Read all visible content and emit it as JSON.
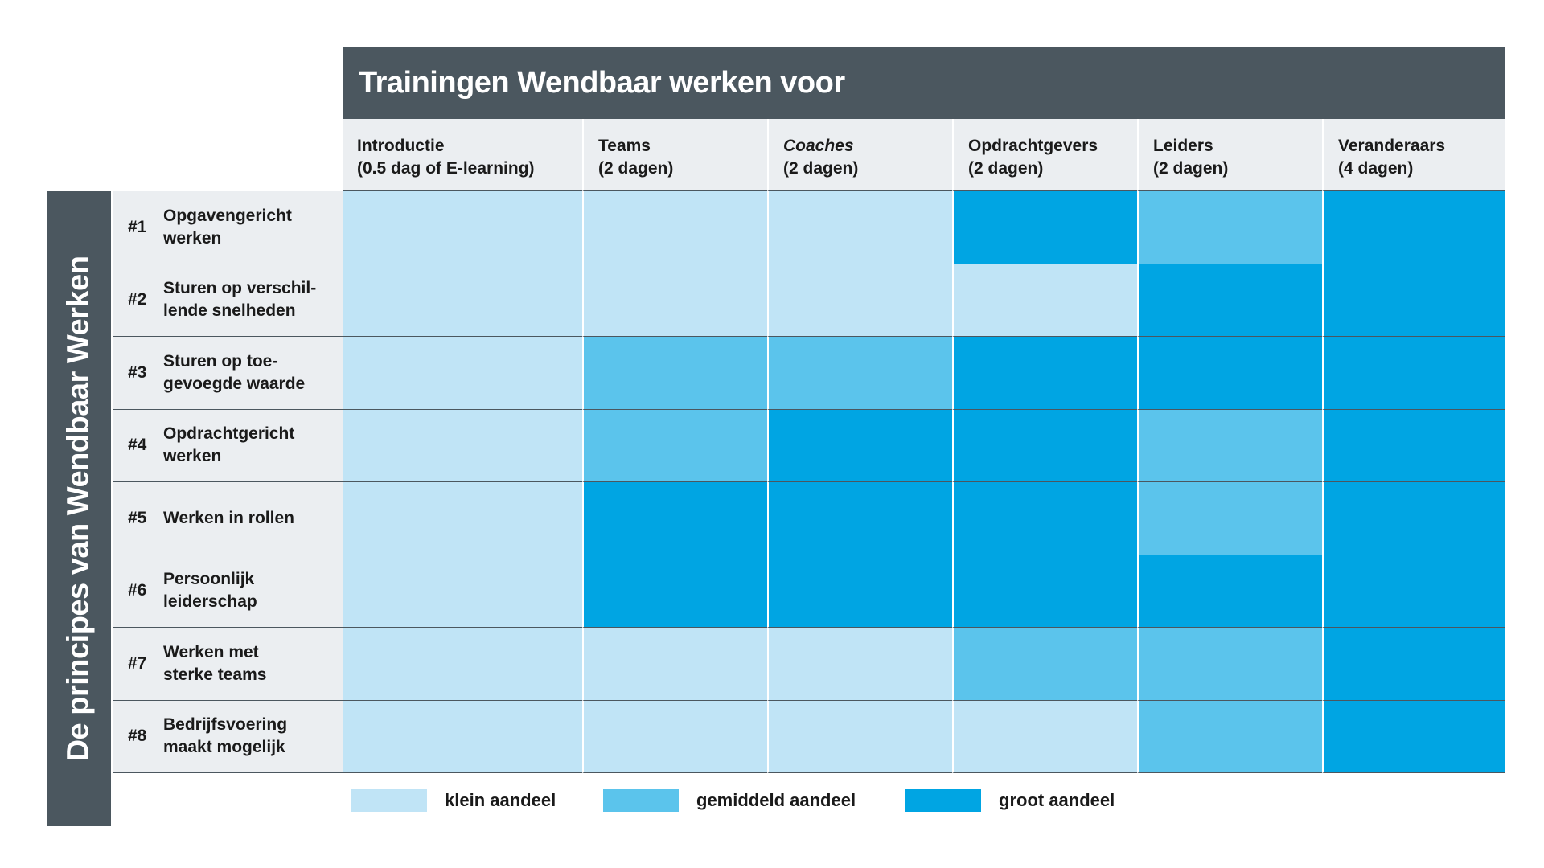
{
  "title": "Trainingen Wendbaar werken voor",
  "side_title": "De principes van Wendbaar Werken",
  "colors": {
    "header_bg": "#4b575f",
    "label_bg": "#ebeef1",
    "klein": "#c0e4f6",
    "gemiddeld": "#5bc4ec",
    "groot": "#00a5e3"
  },
  "chart_data": {
    "type": "heatmap",
    "title": "Trainingen Wendbaar werken voor",
    "columns": [
      {
        "line1": "Introductie",
        "line2": "(0.5 dag of E-learning)",
        "italic": false
      },
      {
        "line1": "Teams",
        "line2": "(2 dagen)",
        "italic": false
      },
      {
        "line1": "Coaches",
        "line2": "(2 dagen)",
        "italic": true
      },
      {
        "line1": "Opdrachtgevers",
        "line2": "(2 dagen)",
        "italic": false
      },
      {
        "line1": "Leiders",
        "line2": "(2 dagen)",
        "italic": false
      },
      {
        "line1": "Veranderaars",
        "line2": "(4 dagen)",
        "italic": false
      }
    ],
    "rows": [
      {
        "num": "#1",
        "lines": [
          "Opgavengericht",
          "werken"
        ]
      },
      {
        "num": "#2",
        "lines": [
          "Sturen op verschil-",
          "lende snelheden"
        ]
      },
      {
        "num": "#3",
        "lines": [
          "Sturen op toe-",
          "gevoegde waarde"
        ]
      },
      {
        "num": "#4",
        "lines": [
          "Opdrachtgericht",
          "werken"
        ]
      },
      {
        "num": "#5",
        "lines": [
          "Werken in rollen"
        ]
      },
      {
        "num": "#6",
        "lines": [
          "Persoonlijk",
          "leiderschap"
        ]
      },
      {
        "num": "#7",
        "lines": [
          "Werken met",
          "sterke teams"
        ]
      },
      {
        "num": "#8",
        "lines": [
          "Bedrijfsvoering",
          "maakt mogelijk"
        ]
      }
    ],
    "levels": [
      "klein",
      "gemiddeld",
      "groot"
    ],
    "values": [
      [
        1,
        1,
        1,
        3,
        2,
        3
      ],
      [
        1,
        1,
        1,
        1,
        3,
        3
      ],
      [
        1,
        2,
        2,
        3,
        3,
        3
      ],
      [
        1,
        2,
        3,
        3,
        2,
        3
      ],
      [
        1,
        3,
        3,
        3,
        2,
        3
      ],
      [
        1,
        3,
        3,
        3,
        3,
        3
      ],
      [
        1,
        1,
        1,
        2,
        2,
        3
      ],
      [
        1,
        1,
        1,
        1,
        2,
        3
      ]
    ],
    "legend": [
      {
        "label": "klein aandeel",
        "level": 1
      },
      {
        "label": "gemiddeld aandeel",
        "level": 2
      },
      {
        "label": "groot aandeel",
        "level": 3
      }
    ]
  }
}
